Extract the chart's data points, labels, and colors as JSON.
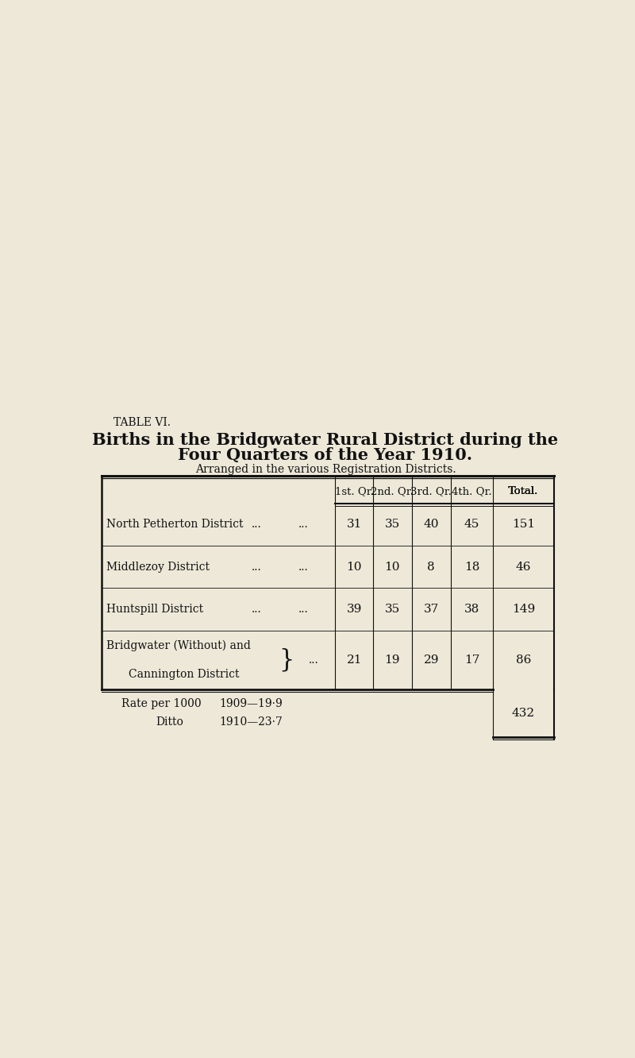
{
  "table_label": "TABLE VI.",
  "title_line1": "Births in the Bridgwater Rural District during the",
  "title_line2": "Four Quarters of the Year 1910.",
  "subtitle": "Arranged in the various Registration Districts.",
  "col_headers": [
    "1st. Qr.",
    "2nd. Qr.",
    "3rd. Qr.",
    "4th. Qr.",
    "Total."
  ],
  "rows": [
    {
      "district_line1": "North Petherton District",
      "district_line2": null,
      "values": [
        31,
        35,
        40,
        45,
        151
      ]
    },
    {
      "district_line1": "Middlezoy District",
      "district_line2": null,
      "values": [
        10,
        10,
        8,
        18,
        46
      ]
    },
    {
      "district_line1": "Huntspill District",
      "district_line2": null,
      "values": [
        39,
        35,
        37,
        38,
        149
      ]
    },
    {
      "district_line1": "Bridgwater (Without) and",
      "district_line2": "Cannington District",
      "values": [
        21,
        19,
        29,
        17,
        86
      ]
    }
  ],
  "footer_rate1": "Rate per 1000",
  "footer_year1": "1909—19·9",
  "footer_rate2": "Ditto",
  "footer_year2": "1910—23·7",
  "footer_total": "432",
  "bg_color": "#ede8d8",
  "text_color": "#111111"
}
